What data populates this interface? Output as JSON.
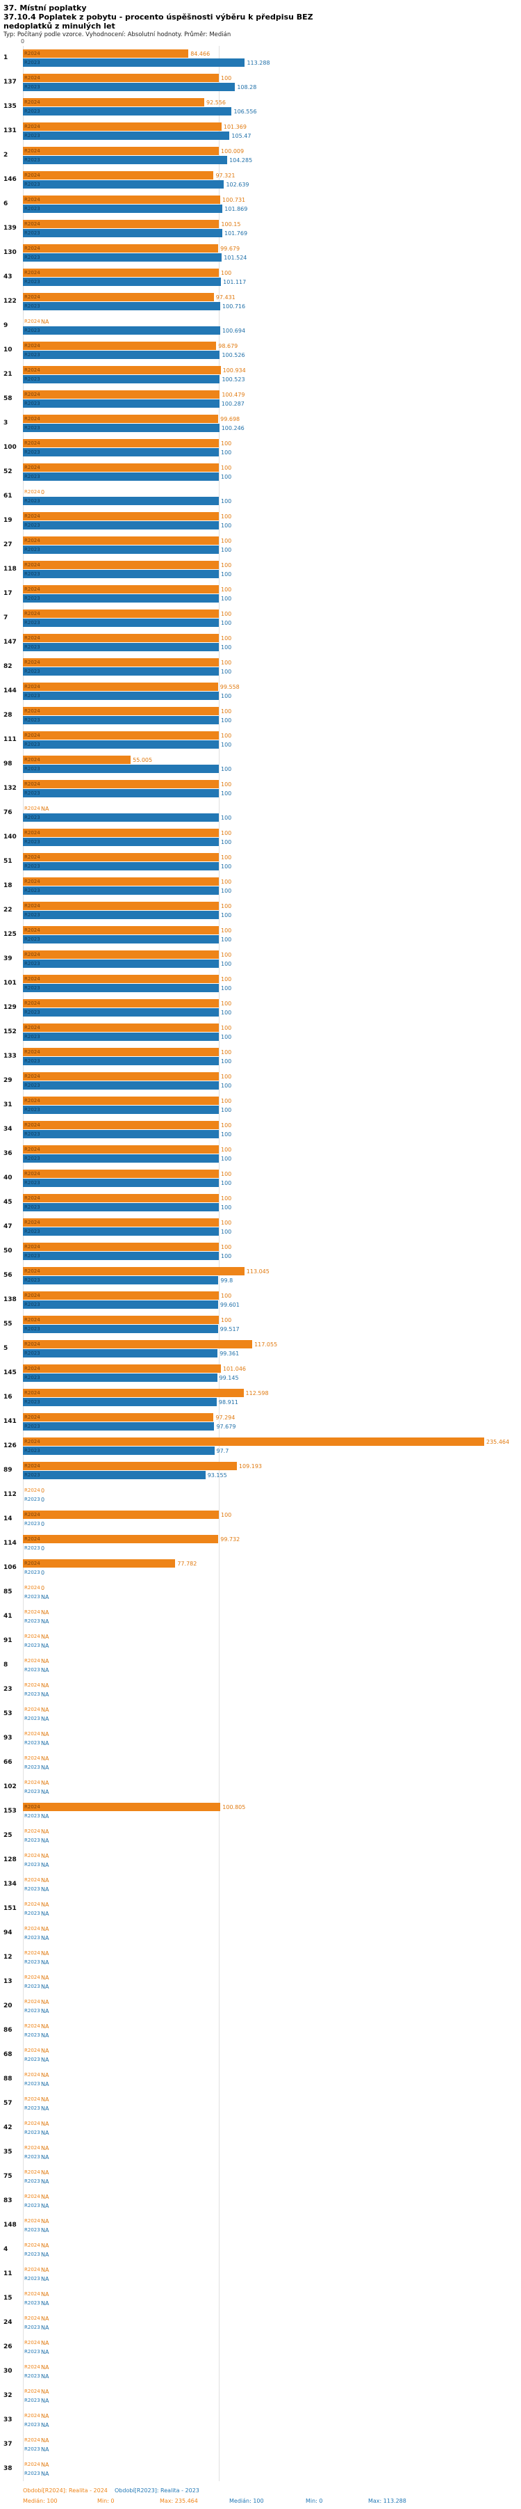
{
  "header": {
    "title": "37. Místní poplatky",
    "subtitle": "37.10.4 Poplatek z pobytu - procento úspěšnosti výběru k předpisu BEZ nedoplatků z minulých let",
    "meta": "Typ: Počítaný podle vzorce. Vyhodnocení: Absolutní hodnoty. Průměr: Medián"
  },
  "axis": {
    "zero_label": "0"
  },
  "chart_data": {
    "type": "bar",
    "orientation": "horizontal",
    "title": "37.10.4 Poplatek z pobytu - procento úspěšnosti výběru k předpisu BEZ nedoplatků z minulých let",
    "xlabel": "procento úspěšnosti výběru",
    "ylabel": "číslo obce",
    "xlim": [
      0,
      250
    ],
    "gridline_at": 100,
    "legend_position": "bottom",
    "series_labels": {
      "r2024": "R2024",
      "r2023": "R2023"
    },
    "colors": {
      "r2024": "#ee8418",
      "r2023": "#2277b4"
    },
    "rows": [
      {
        "id": "1",
        "r2024": "84.466",
        "r2023": "113.288"
      },
      {
        "id": "137",
        "r2024": "100",
        "r2023": "108.28"
      },
      {
        "id": "135",
        "r2024": "92.556",
        "r2023": "106.556"
      },
      {
        "id": "131",
        "r2024": "101.369",
        "r2023": "105.47"
      },
      {
        "id": "2",
        "r2024": "100.009",
        "r2023": "104.285"
      },
      {
        "id": "146",
        "r2024": "97.321",
        "r2023": "102.639"
      },
      {
        "id": "6",
        "r2024": "100.731",
        "r2023": "101.869"
      },
      {
        "id": "139",
        "r2024": "100.15",
        "r2023": "101.769"
      },
      {
        "id": "130",
        "r2024": "99.679",
        "r2023": "101.524"
      },
      {
        "id": "43",
        "r2024": "100",
        "r2023": "101.117"
      },
      {
        "id": "122",
        "r2024": "97.431",
        "r2023": "100.716"
      },
      {
        "id": "9",
        "r2024": "NA",
        "r2023": "100.694"
      },
      {
        "id": "10",
        "r2024": "98.679",
        "r2023": "100.526"
      },
      {
        "id": "21",
        "r2024": "100.934",
        "r2023": "100.523"
      },
      {
        "id": "58",
        "r2024": "100.479",
        "r2023": "100.287"
      },
      {
        "id": "3",
        "r2024": "99.698",
        "r2023": "100.246"
      },
      {
        "id": "100",
        "r2024": "100",
        "r2023": "100"
      },
      {
        "id": "52",
        "r2024": "100",
        "r2023": "100"
      },
      {
        "id": "61",
        "r2024": "0",
        "r2023": "100"
      },
      {
        "id": "19",
        "r2024": "100",
        "r2023": "100"
      },
      {
        "id": "27",
        "r2024": "100",
        "r2023": "100"
      },
      {
        "id": "118",
        "r2024": "100",
        "r2023": "100"
      },
      {
        "id": "17",
        "r2024": "100",
        "r2023": "100"
      },
      {
        "id": "7",
        "r2024": "100",
        "r2023": "100"
      },
      {
        "id": "147",
        "r2024": "100",
        "r2023": "100"
      },
      {
        "id": "82",
        "r2024": "100",
        "r2023": "100"
      },
      {
        "id": "144",
        "r2024": "99.558",
        "r2023": "100"
      },
      {
        "id": "28",
        "r2024": "100",
        "r2023": "100"
      },
      {
        "id": "111",
        "r2024": "100",
        "r2023": "100"
      },
      {
        "id": "98",
        "r2024": "55.005",
        "r2023": "100"
      },
      {
        "id": "132",
        "r2024": "100",
        "r2023": "100"
      },
      {
        "id": "76",
        "r2024": "NA",
        "r2023": "100"
      },
      {
        "id": "140",
        "r2024": "100",
        "r2023": "100"
      },
      {
        "id": "51",
        "r2024": "100",
        "r2023": "100"
      },
      {
        "id": "18",
        "r2024": "100",
        "r2023": "100"
      },
      {
        "id": "22",
        "r2024": "100",
        "r2023": "100"
      },
      {
        "id": "125",
        "r2024": "100",
        "r2023": "100"
      },
      {
        "id": "39",
        "r2024": "100",
        "r2023": "100"
      },
      {
        "id": "101",
        "r2024": "100",
        "r2023": "100"
      },
      {
        "id": "129",
        "r2024": "100",
        "r2023": "100"
      },
      {
        "id": "152",
        "r2024": "100",
        "r2023": "100"
      },
      {
        "id": "133",
        "r2024": "100",
        "r2023": "100"
      },
      {
        "id": "29",
        "r2024": "100",
        "r2023": "100"
      },
      {
        "id": "31",
        "r2024": "100",
        "r2023": "100"
      },
      {
        "id": "34",
        "r2024": "100",
        "r2023": "100"
      },
      {
        "id": "36",
        "r2024": "100",
        "r2023": "100"
      },
      {
        "id": "40",
        "r2024": "100",
        "r2023": "100"
      },
      {
        "id": "45",
        "r2024": "100",
        "r2023": "100"
      },
      {
        "id": "47",
        "r2024": "100",
        "r2023": "100"
      },
      {
        "id": "50",
        "r2024": "100",
        "r2023": "100"
      },
      {
        "id": "56",
        "r2024": "113.045",
        "r2023": "99.8"
      },
      {
        "id": "138",
        "r2024": "100",
        "r2023": "99.601"
      },
      {
        "id": "55",
        "r2024": "100",
        "r2023": "99.517"
      },
      {
        "id": "5",
        "r2024": "117.055",
        "r2023": "99.361"
      },
      {
        "id": "145",
        "r2024": "101.046",
        "r2023": "99.145"
      },
      {
        "id": "16",
        "r2024": "112.598",
        "r2023": "98.911"
      },
      {
        "id": "141",
        "r2024": "97.294",
        "r2023": "97.679"
      },
      {
        "id": "126",
        "r2024": "235.464",
        "r2023": "97.7"
      },
      {
        "id": "89",
        "r2024": "109.193",
        "r2023": "93.155"
      },
      {
        "id": "112",
        "r2024": "0",
        "r2023": "0"
      },
      {
        "id": "14",
        "r2024": "100",
        "r2023": "0"
      },
      {
        "id": "114",
        "r2024": "99.732",
        "r2023": "0"
      },
      {
        "id": "106",
        "r2024": "77.782",
        "r2023": "0"
      },
      {
        "id": "85",
        "r2024": "0",
        "r2023": "NA"
      },
      {
        "id": "41",
        "r2024": "NA",
        "r2023": "NA"
      },
      {
        "id": "91",
        "r2024": "NA",
        "r2023": "NA"
      },
      {
        "id": "8",
        "r2024": "NA",
        "r2023": "NA"
      },
      {
        "id": "23",
        "r2024": "NA",
        "r2023": "NA"
      },
      {
        "id": "53",
        "r2024": "NA",
        "r2023": "NA"
      },
      {
        "id": "93",
        "r2024": "NA",
        "r2023": "NA"
      },
      {
        "id": "66",
        "r2024": "NA",
        "r2023": "NA"
      },
      {
        "id": "102",
        "r2024": "NA",
        "r2023": "NA"
      },
      {
        "id": "153",
        "r2024": "100.805",
        "r2023": "NA"
      },
      {
        "id": "25",
        "r2024": "NA",
        "r2023": "NA"
      },
      {
        "id": "128",
        "r2024": "NA",
        "r2023": "NA"
      },
      {
        "id": "134",
        "r2024": "NA",
        "r2023": "NA"
      },
      {
        "id": "151",
        "r2024": "NA",
        "r2023": "NA"
      },
      {
        "id": "94",
        "r2024": "NA",
        "r2023": "NA"
      },
      {
        "id": "12",
        "r2024": "NA",
        "r2023": "NA"
      },
      {
        "id": "13",
        "r2024": "NA",
        "r2023": "NA"
      },
      {
        "id": "20",
        "r2024": "NA",
        "r2023": "NA"
      },
      {
        "id": "86",
        "r2024": "NA",
        "r2023": "NA"
      },
      {
        "id": "68",
        "r2024": "NA",
        "r2023": "NA"
      },
      {
        "id": "88",
        "r2024": "NA",
        "r2023": "NA"
      },
      {
        "id": "57",
        "r2024": "NA",
        "r2023": "NA"
      },
      {
        "id": "42",
        "r2024": "NA",
        "r2023": "NA"
      },
      {
        "id": "35",
        "r2024": "NA",
        "r2023": "NA"
      },
      {
        "id": "75",
        "r2024": "NA",
        "r2023": "NA"
      },
      {
        "id": "83",
        "r2024": "NA",
        "r2023": "NA"
      },
      {
        "id": "148",
        "r2024": "NA",
        "r2023": "NA"
      },
      {
        "id": "4",
        "r2024": "NA",
        "r2023": "NA"
      },
      {
        "id": "11",
        "r2024": "NA",
        "r2023": "NA"
      },
      {
        "id": "15",
        "r2024": "NA",
        "r2023": "NA"
      },
      {
        "id": "24",
        "r2024": "NA",
        "r2023": "NA"
      },
      {
        "id": "26",
        "r2024": "NA",
        "r2023": "NA"
      },
      {
        "id": "30",
        "r2024": "NA",
        "r2023": "NA"
      },
      {
        "id": "32",
        "r2024": "NA",
        "r2023": "NA"
      },
      {
        "id": "33",
        "r2024": "NA",
        "r2023": "NA"
      },
      {
        "id": "37",
        "r2024": "NA",
        "r2023": "NA"
      },
      {
        "id": "38",
        "r2024": "NA",
        "r2023": "NA"
      }
    ]
  },
  "legend": {
    "r2024": {
      "label": "Období[R2024]: Realita - 2024",
      "median": "Medián: 100",
      "min": "Min: 0",
      "max": "Max: 235.464"
    },
    "r2023": {
      "label": "Období[R2023]: Realita - 2023",
      "median": "Medián: 100",
      "min": "Min: 0",
      "max": "Max: 113.288"
    }
  }
}
